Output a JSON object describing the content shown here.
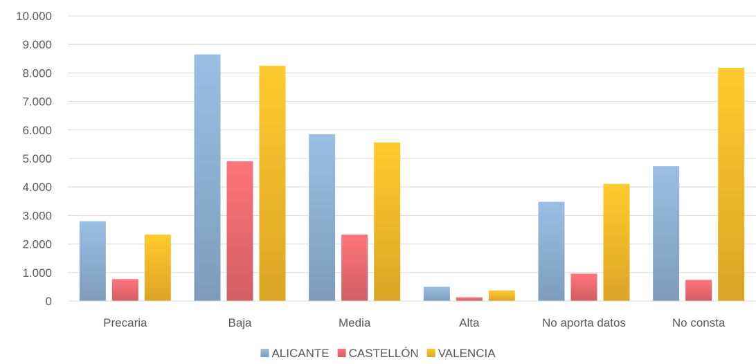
{
  "chart_data": {
    "type": "bar",
    "categories": [
      "Precaria",
      "Baja",
      "Media",
      "Alta",
      "No aporta datos",
      "No consta"
    ],
    "series": [
      {
        "name": "ALICANTE",
        "color": "#8fb1d3",
        "values": [
          2800,
          8650,
          5850,
          500,
          3480,
          4730
        ]
      },
      {
        "name": "CASTELLÓN",
        "color": "#ee6b72",
        "values": [
          770,
          4900,
          2330,
          130,
          960,
          740
        ]
      },
      {
        "name": "VALENCIA",
        "color": "#f9bb2b",
        "values": [
          2330,
          8250,
          5560,
          370,
          4110,
          8180
        ]
      }
    ],
    "ylim": [
      0,
      10000
    ],
    "yticks": [
      0,
      1000,
      2000,
      3000,
      4000,
      5000,
      6000,
      7000,
      8000,
      9000,
      10000
    ],
    "ytick_labels": [
      "0",
      "1.000",
      "2.000",
      "3.000",
      "4.000",
      "5.000",
      "6.000",
      "7.000",
      "8.000",
      "9.000",
      "10.000"
    ],
    "grid": true,
    "legend_position": "bottom"
  }
}
